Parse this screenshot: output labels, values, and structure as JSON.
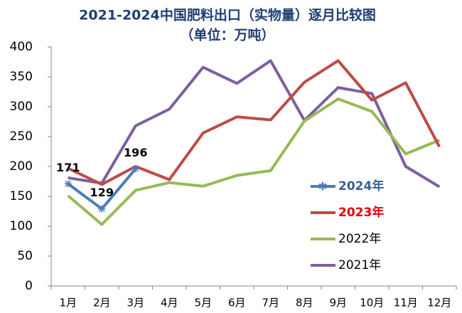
{
  "chart_data": {
    "type": "line",
    "title": "2021-2024中国肥料出口（实物量）逐月比较图",
    "subtitle": "（单位：万吨）",
    "categories": [
      "1月",
      "2月",
      "3月",
      "4月",
      "5月",
      "6月",
      "7月",
      "8月",
      "9月",
      "10月",
      "11月",
      "12月"
    ],
    "series": [
      {
        "name": "2024年",
        "color": "#4a7ebb",
        "label_color": "#376092",
        "marker": "asterisk",
        "data_labels": true,
        "values": [
          171,
          129,
          196,
          null,
          null,
          null,
          null,
          null,
          null,
          null,
          null,
          null
        ]
      },
      {
        "name": "2023年",
        "color": "#be4b48",
        "label_color": "#e00000",
        "values": [
          197,
          170,
          200,
          178,
          256,
          283,
          278,
          341,
          377,
          311,
          340,
          233
        ]
      },
      {
        "name": "2022年",
        "color": "#98b954",
        "label_color": "#000000",
        "values": [
          151,
          103,
          160,
          173,
          167,
          185,
          193,
          276,
          313,
          292,
          221,
          244
        ]
      },
      {
        "name": "2021年",
        "color": "#7d5fa0",
        "label_color": "#000000",
        "values": [
          181,
          172,
          268,
          296,
          366,
          339,
          377,
          277,
          332,
          322,
          200,
          166
        ]
      }
    ],
    "ylim": [
      0,
      400
    ],
    "yticks": [
      0,
      50,
      100,
      150,
      200,
      250,
      300,
      350,
      400
    ],
    "grid": false
  }
}
